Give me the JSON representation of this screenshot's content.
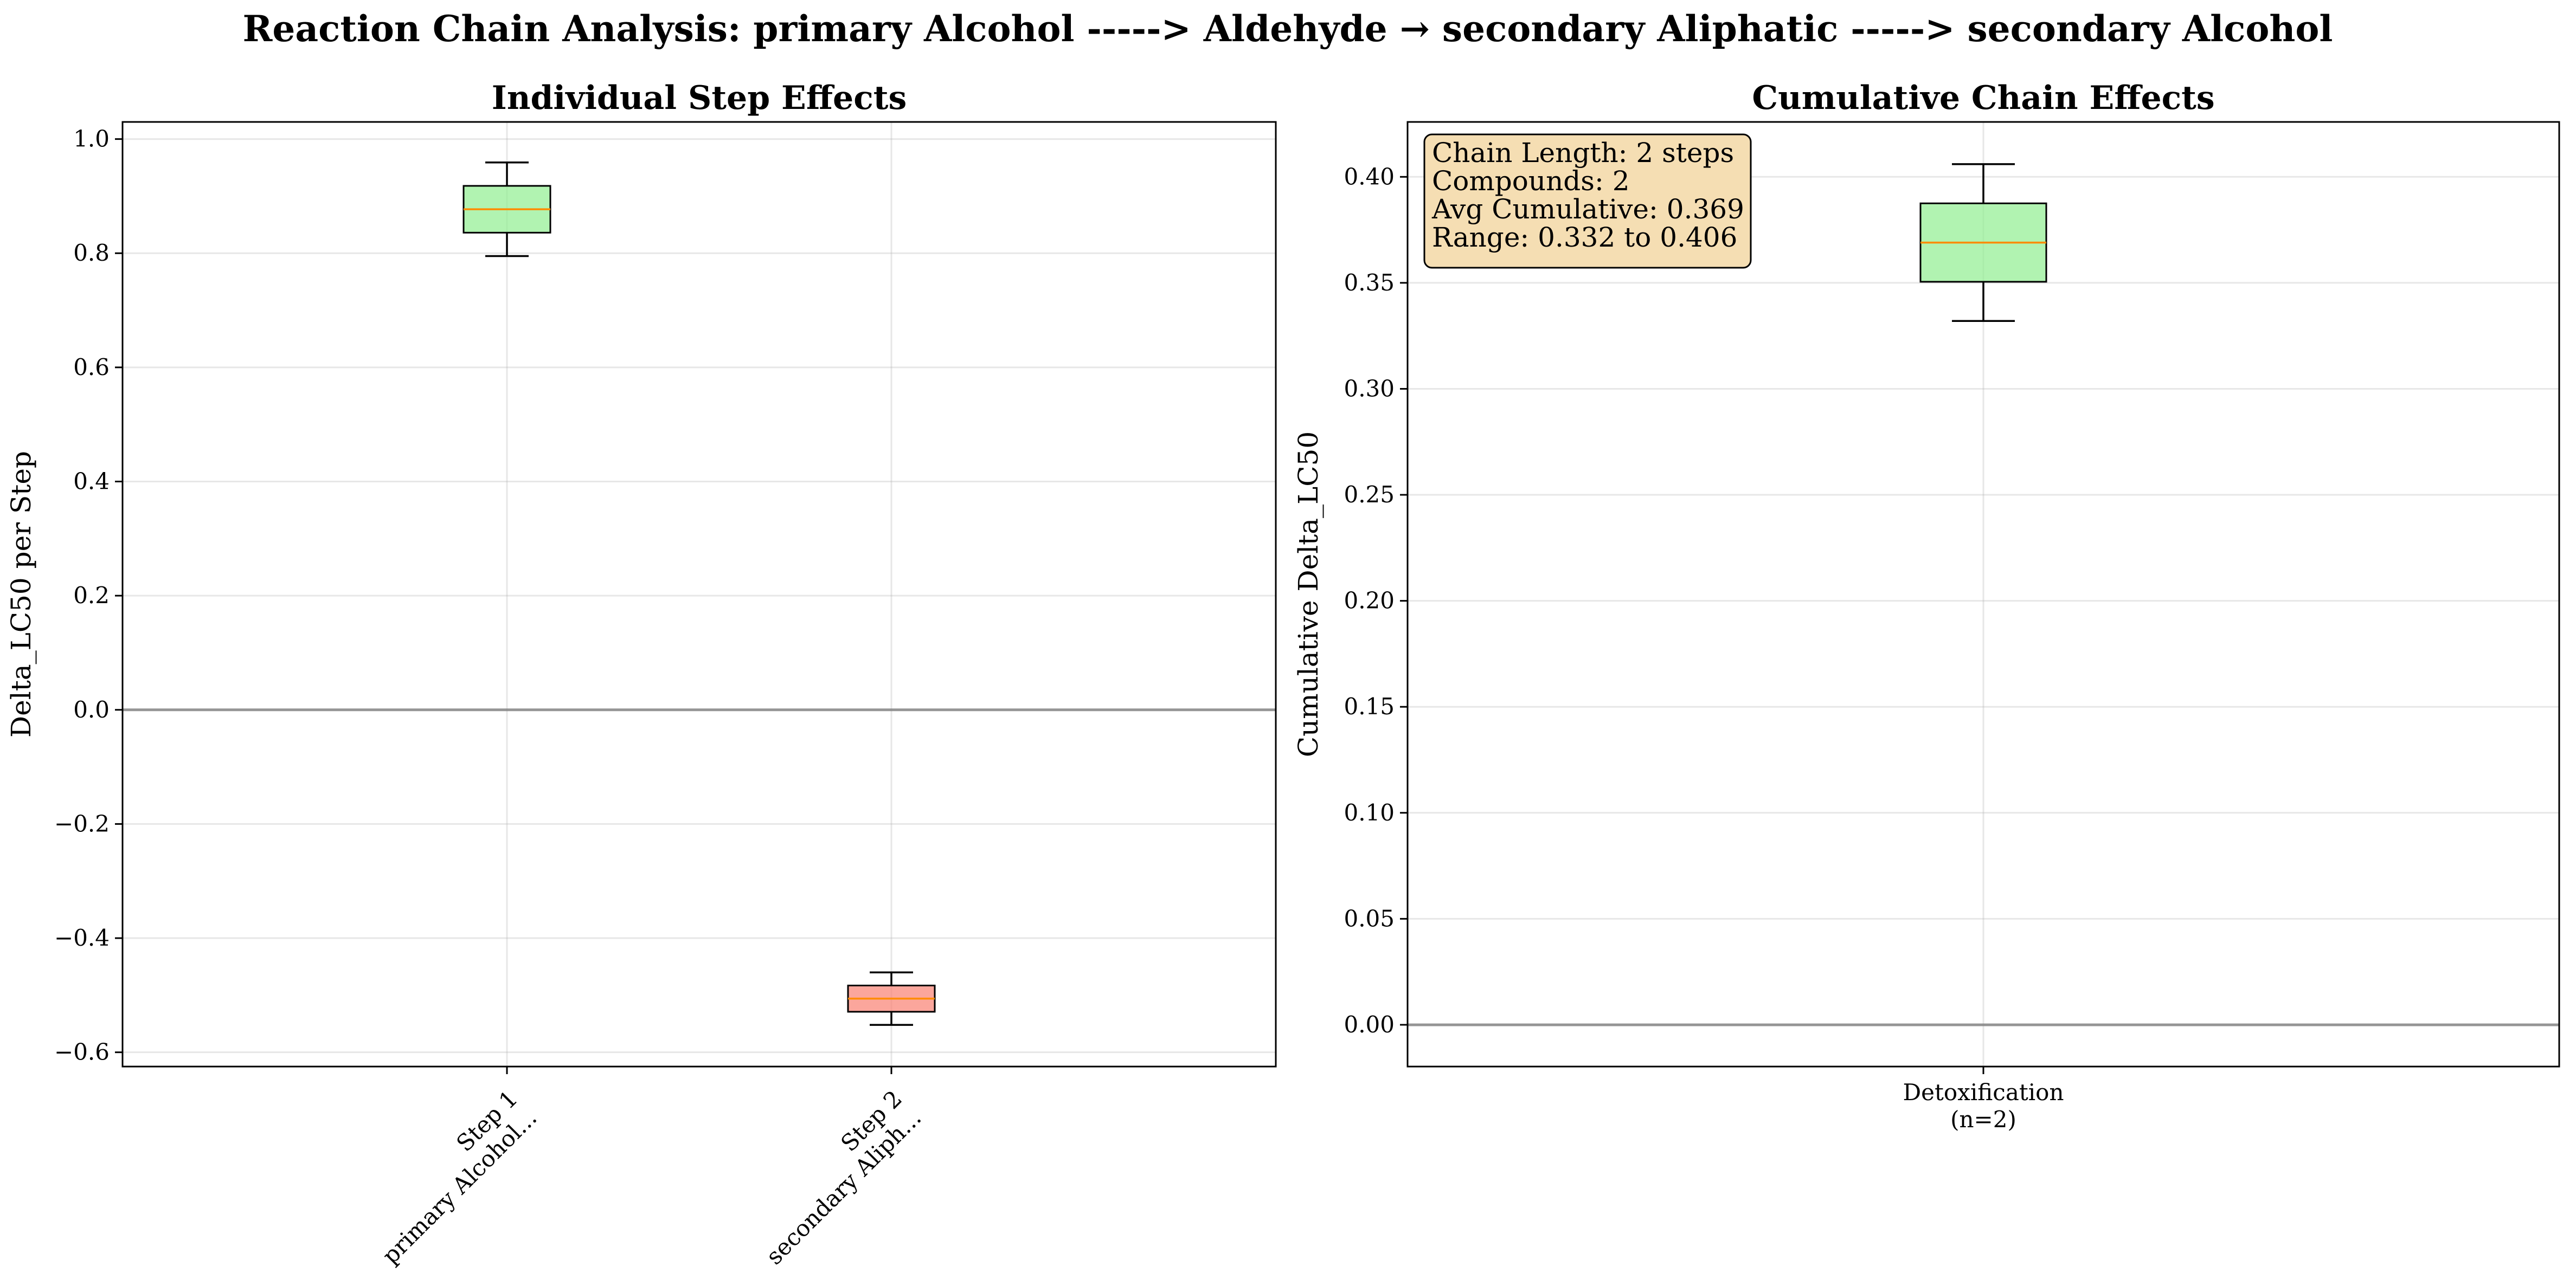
{
  "figure": {
    "suptitle": "Reaction Chain Analysis: primary Alcohol -----> Aldehyde → secondary Aliphatic -----> secondary Alcohol"
  },
  "chart_data": [
    {
      "type": "box",
      "title": "Individual Step Effects",
      "xlabel": "",
      "ylabel": "Delta_LC50 per Step",
      "ylim": [
        -0.625,
        1.03
      ],
      "yticks": [
        -0.6,
        -0.4,
        -0.2,
        0.0,
        0.2,
        0.4,
        0.6,
        0.8,
        1.0
      ],
      "ytick_labels": [
        "−0.6",
        "−0.4",
        "−0.2",
        "0.0",
        "0.2",
        "0.4",
        "0.6",
        "0.8",
        "1.0"
      ],
      "reference_line": 0.0,
      "grid": true,
      "categories": [
        [
          "Step 1",
          "primary Alcohol..."
        ],
        [
          "Step 2",
          "secondary Aliph..."
        ]
      ],
      "boxes": [
        {
          "whislo": 0.795,
          "q1": 0.836,
          "med": 0.877,
          "q3": 0.918,
          "whishi": 0.959,
          "fill": "#90ee90",
          "median_color": "#ff8c00"
        },
        {
          "whislo": -0.552,
          "q1": -0.529,
          "med": -0.506,
          "q3": -0.483,
          "whishi": -0.46,
          "fill": "#fa8072",
          "median_color": "#ff8c00"
        }
      ]
    },
    {
      "type": "box",
      "title": "Cumulative Chain Effects",
      "xlabel": "",
      "ylabel": "Cumulative Delta_LC50",
      "ylim": [
        -0.0197,
        0.4259
      ],
      "yticks": [
        0.0,
        0.05,
        0.1,
        0.15,
        0.2,
        0.25,
        0.3,
        0.35,
        0.4
      ],
      "ytick_labels": [
        "0.00",
        "0.05",
        "0.10",
        "0.15",
        "0.20",
        "0.25",
        "0.30",
        "0.35",
        "0.40"
      ],
      "reference_line": 0.0,
      "grid": true,
      "categories": [
        [
          "Detoxification",
          "(n=2)"
        ]
      ],
      "boxes": [
        {
          "whislo": 0.332,
          "q1": 0.3505,
          "med": 0.369,
          "q3": 0.3875,
          "whishi": 0.406,
          "fill": "#90ee90",
          "median_color": "#ff8c00"
        }
      ],
      "annotation": [
        "Chain Length: 2 steps",
        "Compounds: 2",
        "Avg Cumulative: 0.369",
        "Range: 0.332 to 0.406"
      ]
    }
  ]
}
